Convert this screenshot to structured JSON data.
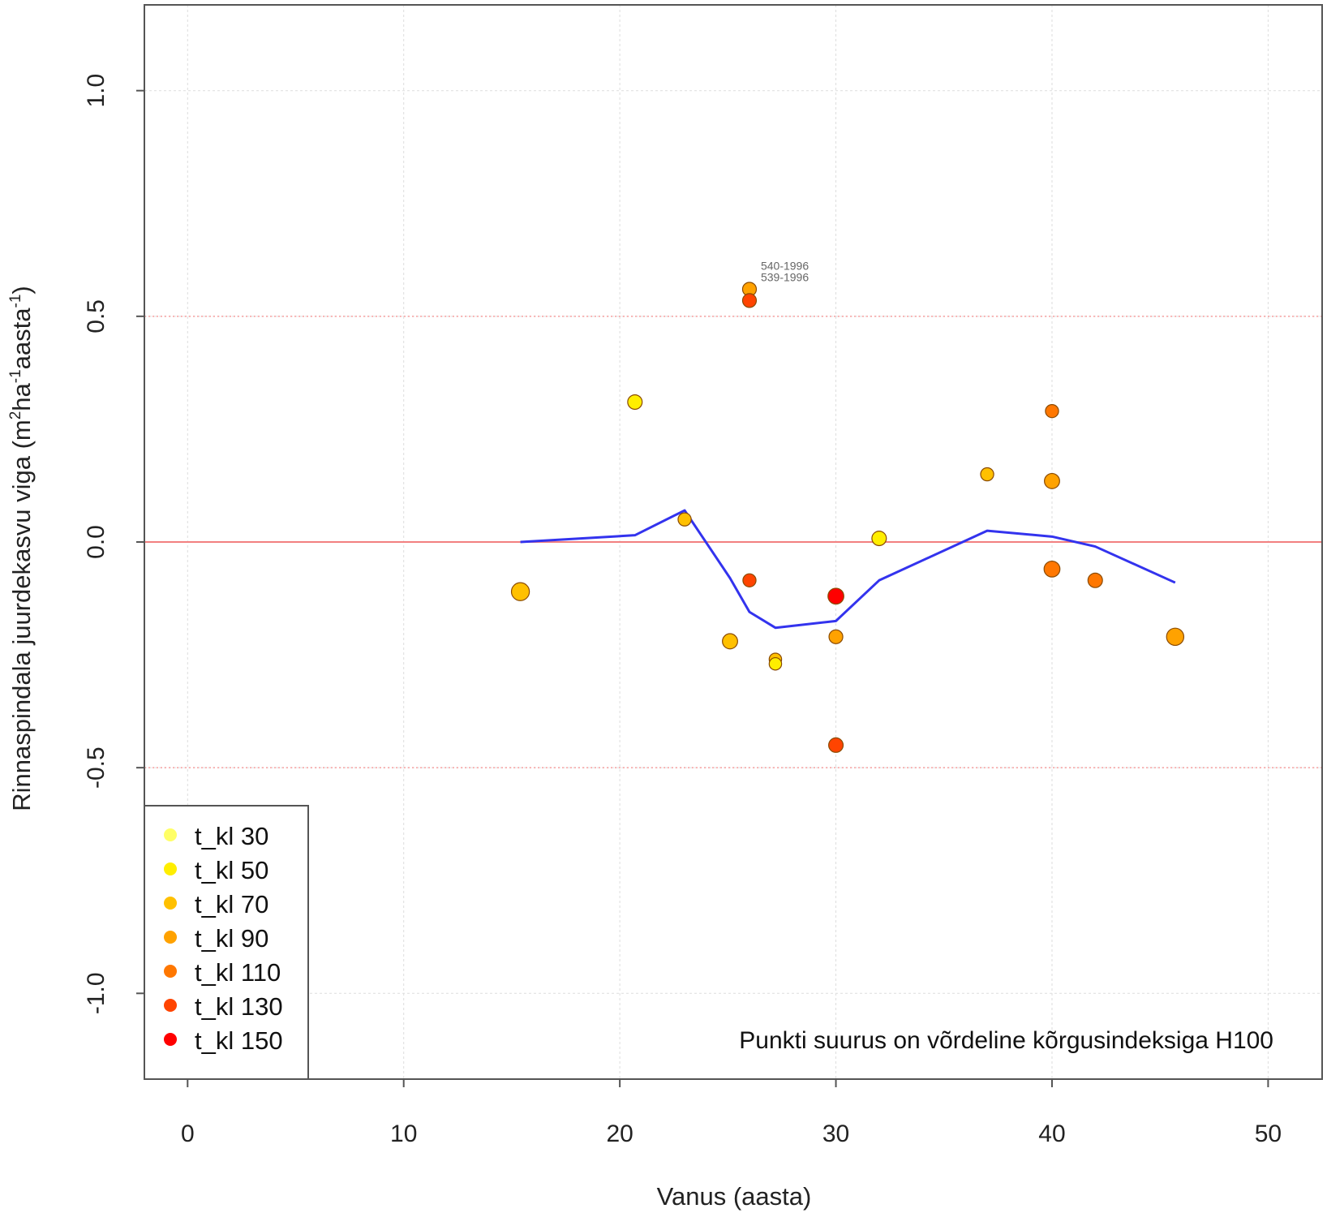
{
  "chart_data": {
    "type": "scatter",
    "xlabel": "Vanus (aasta)",
    "ylabel_parts": [
      "Rinnaspindala juurdekasvu viga  (m",
      "2",
      "ha",
      "-1",
      "aasta",
      "-1",
      ")"
    ],
    "xlim": [
      -2,
      52.5
    ],
    "ylim": [
      -1.19,
      1.19
    ],
    "x_ticks": [
      0,
      10,
      20,
      30,
      40,
      50
    ],
    "x_tick_labels": [
      "0",
      "10",
      "20",
      "30",
      "40",
      "50"
    ],
    "y_ticks": [
      -1.0,
      -0.5,
      0.0,
      0.5,
      1.0
    ],
    "y_tick_labels": [
      "-1.0",
      "-0.5",
      "0.0",
      "0.5",
      "1.0"
    ],
    "grid": true,
    "reference_lines": [
      {
        "y": 0.0,
        "style": "solid",
        "color": "#f28080"
      },
      {
        "y": 0.5,
        "style": "dotted",
        "color": "#f6a0a0"
      },
      {
        "y": -0.5,
        "style": "dotted",
        "color": "#f6a0a0"
      }
    ],
    "annotation": "Punkti suurus on võrdeline kõrgusindeksiga H100",
    "legend": {
      "position": "bottom-left",
      "entries": [
        {
          "label": "t_kl 30",
          "color": "#ffff66"
        },
        {
          "label": "t_kl 50",
          "color": "#ffee00"
        },
        {
          "label": "t_kl 70",
          "color": "#ffc000"
        },
        {
          "label": "t_kl 90",
          "color": "#ffa200"
        },
        {
          "label": "t_kl 110",
          "color": "#ff7700"
        },
        {
          "label": "t_kl 130",
          "color": "#ff4400"
        },
        {
          "label": "t_kl 150",
          "color": "#ff0000"
        }
      ]
    },
    "series": [
      {
        "name": "points",
        "points": [
          {
            "x": 15.4,
            "y": -0.11,
            "class": "t_kl 70",
            "size": 1.3
          },
          {
            "x": 20.7,
            "y": 0.31,
            "class": "t_kl 50",
            "size": 1.05
          },
          {
            "x": 23.0,
            "y": 0.05,
            "class": "t_kl 70",
            "size": 0.95
          },
          {
            "x": 25.1,
            "y": -0.22,
            "class": "t_kl 70",
            "size": 1.1
          },
          {
            "x": 26.0,
            "y": 0.56,
            "class": "t_kl 90",
            "size": 1.0,
            "label": "540-1996"
          },
          {
            "x": 26.0,
            "y": 0.535,
            "class": "t_kl 130",
            "size": 1.0,
            "label": "539-1996"
          },
          {
            "x": 26.0,
            "y": -0.085,
            "class": "t_kl 130",
            "size": 0.95
          },
          {
            "x": 27.2,
            "y": -0.26,
            "class": "t_kl 70",
            "size": 0.9
          },
          {
            "x": 27.2,
            "y": -0.27,
            "class": "t_kl 50",
            "size": 0.9
          },
          {
            "x": 30.0,
            "y": -0.12,
            "class": "t_kl 150",
            "size": 1.15
          },
          {
            "x": 30.0,
            "y": -0.21,
            "class": "t_kl 90",
            "size": 1.0
          },
          {
            "x": 30.0,
            "y": -0.45,
            "class": "t_kl 130",
            "size": 1.05
          },
          {
            "x": 32.0,
            "y": 0.008,
            "class": "t_kl 50",
            "size": 1.05
          },
          {
            "x": 37.0,
            "y": 0.15,
            "class": "t_kl 70",
            "size": 0.95
          },
          {
            "x": 40.0,
            "y": 0.29,
            "class": "t_kl 110",
            "size": 0.95
          },
          {
            "x": 40.0,
            "y": 0.135,
            "class": "t_kl 90",
            "size": 1.1
          },
          {
            "x": 40.0,
            "y": -0.06,
            "class": "t_kl 110",
            "size": 1.15
          },
          {
            "x": 42.0,
            "y": -0.085,
            "class": "t_kl 110",
            "size": 1.05
          },
          {
            "x": 45.7,
            "y": -0.21,
            "class": "t_kl 90",
            "size": 1.25
          }
        ]
      },
      {
        "name": "smooth",
        "type": "line",
        "color": "#3333ee",
        "x": [
          15.4,
          20.7,
          23.0,
          25.1,
          26.0,
          27.2,
          30.0,
          32.0,
          37.0,
          40.0,
          42.0,
          45.7
        ],
        "y": [
          0.0,
          0.015,
          0.07,
          -0.08,
          -0.155,
          -0.19,
          -0.175,
          -0.085,
          0.025,
          0.012,
          -0.01,
          -0.09
        ]
      }
    ]
  }
}
